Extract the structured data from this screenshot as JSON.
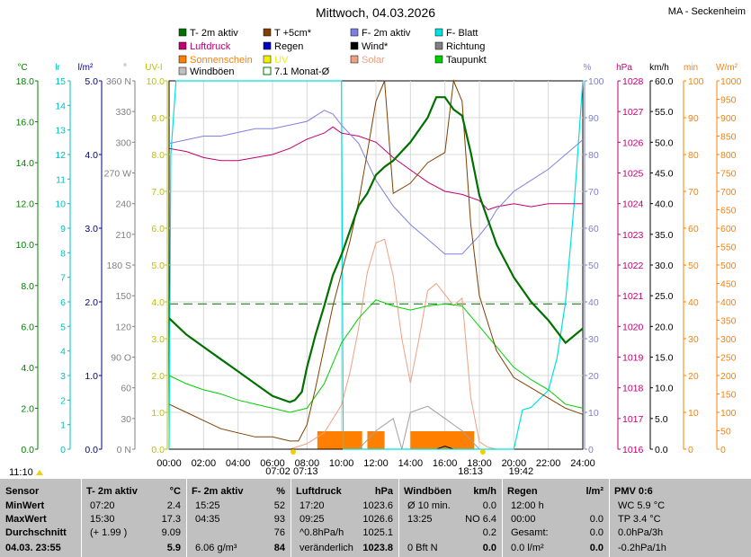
{
  "header": {
    "title": "Mittwoch, 04.03.2026",
    "station": "MA - Seckenheim"
  },
  "legend": [
    {
      "label": "T- 2m aktiv",
      "color": "#007000"
    },
    {
      "label": "T +5cm*",
      "color": "#804000"
    },
    {
      "label": "F- 2m aktiv",
      "color": "#8080e0"
    },
    {
      "label": "F- Blatt",
      "color": "#00e0e0"
    },
    {
      "label": "Luftdruck",
      "color": "#c00070"
    },
    {
      "label": "Regen",
      "color": "#0000c0"
    },
    {
      "label": "Wind*",
      "color": "#000000"
    },
    {
      "label": "Richtung",
      "color": "#808080"
    },
    {
      "label": "Sonnenschein",
      "color": "#ff8000"
    },
    {
      "label": "UV",
      "color": "#f0f000"
    },
    {
      "label": "Solar",
      "color": "#f0a080"
    },
    {
      "label": "Taupunkt",
      "color": "#00d000"
    },
    {
      "label": "Windböen",
      "color": "#c0c0c0"
    },
    {
      "label": "7.1 Monat-Ø",
      "color": "#007000"
    }
  ],
  "axes": {
    "temp": {
      "unit": "°C",
      "color": "#008000",
      "ticks": [
        "18.0",
        "16.0",
        "14.0",
        "12.0",
        "10.0",
        "8.0",
        "6.0",
        "4.0",
        "2.0",
        "0.0"
      ]
    },
    "leaf": {
      "unit": "lr",
      "color": "#00c0c0",
      "ticks": [
        "15",
        "14",
        "13",
        "12",
        "11",
        "10",
        "9",
        "8",
        "7",
        "6",
        "5",
        "4",
        "3",
        "2",
        "1",
        "0"
      ]
    },
    "rain": {
      "unit": "l/m²",
      "color": "#000080",
      "ticks": [
        "5.0",
        "4.0",
        "3.0",
        "2.0",
        "1.0",
        "0.0"
      ]
    },
    "dir": {
      "unit": "°",
      "color": "#808080",
      "ticks": [
        "360 N",
        "330",
        "300",
        "270 W",
        "240",
        "210",
        "180 S",
        "150",
        "120",
        "90 O",
        "60",
        "30",
        "0 N"
      ]
    },
    "uv": {
      "unit": "UV-I",
      "color": "#c0c000",
      "ticks": [
        "10.0",
        "9.0",
        "8.0",
        "7.0",
        "6.0",
        "5.0",
        "4.0",
        "3.0",
        "2.0",
        "1.0",
        "0.0"
      ]
    },
    "hum": {
      "unit": "%",
      "color": "#8080c0",
      "ticks": [
        "100",
        "90",
        "80",
        "70",
        "60",
        "50",
        "40",
        "30",
        "20",
        "10",
        "0"
      ]
    },
    "press": {
      "unit": "hPa",
      "color": "#c00070",
      "ticks": [
        "1028",
        "1027",
        "1026",
        "1025",
        "1024",
        "1023",
        "1022",
        "1021",
        "1020",
        "1019",
        "1018",
        "1017",
        "1016"
      ]
    },
    "wind": {
      "unit": "km/h",
      "color": "#000000",
      "ticks": [
        "60.0",
        "55.0",
        "50.0",
        "45.0",
        "40.0",
        "35.0",
        "30.0",
        "25.0",
        "20.0",
        "15.0",
        "10.0",
        "5.0",
        "0.0"
      ]
    },
    "sunmin": {
      "unit": "min",
      "color": "#ff8000",
      "ticks": [
        "100",
        "90",
        "80",
        "70",
        "60",
        "50",
        "40",
        "30",
        "20",
        "10",
        "0"
      ]
    },
    "solar": {
      "unit": "W/m²",
      "color": "#ff8000",
      "ticks": [
        "1000",
        "950",
        "900",
        "850",
        "800",
        "750",
        "700",
        "650",
        "600",
        "550",
        "500",
        "450",
        "400",
        "350",
        "300",
        "250",
        "200",
        "150",
        "100",
        "50",
        "0"
      ]
    },
    "time": [
      "00:00",
      "02:00",
      "04:00",
      "06:00",
      "08:00",
      "10:00",
      "12:00",
      "14:00",
      "16:00",
      "18:00",
      "20:00",
      "22:00",
      "24:00"
    ]
  },
  "markers": {
    "sunrise": "07:02",
    "sunset": "18:13",
    "civil_start": "07:13",
    "civil_end": "19:42",
    "clock": "11:10"
  },
  "chart_data": {
    "type": "line",
    "x_label_unit": "hours",
    "monthly_avg_temp": 7.1,
    "series": [
      {
        "name": "T- 2m aktiv",
        "x": [
          0,
          1,
          2,
          3,
          4,
          5,
          6,
          7,
          7.3,
          7.7,
          8,
          8.5,
          9,
          9.5,
          10,
          10.5,
          11,
          11.5,
          12,
          12.5,
          13,
          14,
          15,
          15.5,
          16,
          16.5,
          17,
          17.5,
          18,
          19,
          20,
          21,
          22,
          23,
          24
        ],
        "y": [
          6.4,
          5.6,
          5.0,
          4.4,
          3.8,
          3.2,
          2.6,
          2.3,
          2.4,
          2.8,
          4.0,
          5.6,
          7.0,
          8.5,
          9.5,
          10.7,
          11.9,
          12.5,
          13.4,
          13.8,
          14.1,
          15.0,
          16.2,
          17.2,
          17.2,
          16.6,
          16.3,
          14.5,
          12.4,
          10.0,
          8.4,
          7.2,
          6.3,
          5.2,
          5.9
        ]
      },
      {
        "name": "F- 2m aktiv",
        "x": [
          0,
          1,
          2,
          3,
          4,
          5,
          6,
          7,
          8,
          9,
          9.5,
          10,
          11,
          12,
          13,
          14,
          15,
          16,
          17,
          18,
          18.5,
          19,
          20,
          21,
          22,
          23,
          24
        ],
        "y": [
          83,
          84,
          85,
          85,
          86,
          87,
          87,
          88,
          89,
          92,
          91,
          88,
          83,
          73,
          66,
          61,
          57,
          53,
          53,
          58,
          61,
          65,
          70,
          73,
          76,
          80,
          84
        ]
      },
      {
        "name": "Luftdruck",
        "x": [
          0,
          1,
          2,
          3,
          4,
          5,
          6,
          7,
          8,
          9,
          9.5,
          10,
          11,
          12,
          13,
          14,
          15,
          16,
          17,
          18,
          18.5,
          19,
          20,
          21,
          22,
          23,
          24
        ],
        "y": [
          1025.8,
          1025.7,
          1025.5,
          1025.4,
          1025.4,
          1025.5,
          1025.6,
          1025.8,
          1026.1,
          1026.3,
          1026.5,
          1026.3,
          1026.2,
          1026.0,
          1025.5,
          1025.1,
          1024.7,
          1024.4,
          1024.3,
          1024.1,
          1023.8,
          1023.9,
          1024.0,
          1023.9,
          1024.0,
          1024.0,
          1024.0
        ]
      },
      {
        "name": "Taupunkt",
        "x": [
          0,
          1,
          2,
          3,
          4,
          5,
          6,
          7,
          8,
          9,
          10,
          11,
          12,
          13,
          14,
          15,
          16,
          17,
          18,
          19,
          20,
          21,
          22,
          23,
          24
        ],
        "y": [
          3.6,
          3.2,
          2.9,
          2.7,
          2.4,
          2.2,
          2.0,
          1.8,
          2.0,
          3.2,
          5.2,
          6.4,
          7.3,
          7.0,
          6.8,
          7.0,
          7.1,
          7.0,
          6.0,
          5.0,
          4.0,
          3.4,
          2.9,
          2.2,
          2.0
        ]
      },
      {
        "name": "T +5cm*",
        "x": [
          0,
          1,
          2,
          3,
          4,
          5,
          6,
          7,
          7.5,
          8,
          8.5,
          9,
          9.5,
          10,
          10.5,
          11,
          11.5,
          12,
          12.5,
          13,
          14,
          15,
          16,
          16.5,
          17,
          17.5,
          18,
          19,
          20,
          21,
          22,
          23,
          24
        ],
        "y": [
          2.2,
          1.8,
          1.4,
          1.0,
          0.8,
          0.6,
          0.6,
          0.4,
          0.4,
          1.2,
          3.0,
          5.0,
          7.0,
          8.6,
          10.2,
          12.1,
          14.5,
          17.0,
          18.0,
          12.5,
          13.0,
          14.0,
          14.5,
          18.0,
          17.0,
          11.0,
          7.5,
          4.8,
          3.5,
          3.0,
          2.5,
          2.0,
          1.7
        ]
      },
      {
        "name": "F- Blatt",
        "x": [
          0,
          0.1,
          0.4,
          9.9,
          10,
          10.1,
          20,
          20.5,
          21,
          22,
          22.5,
          23,
          23.5,
          24
        ],
        "y": [
          0,
          12,
          15,
          15,
          15,
          0,
          0,
          1.6,
          1.7,
          2.4,
          3.7,
          6.0,
          10.0,
          15.0
        ]
      },
      {
        "name": "Solar",
        "x": [
          0,
          7,
          8,
          9,
          10,
          10.5,
          11,
          11.5,
          12,
          12.5,
          13,
          13.5,
          14,
          14.5,
          15,
          15.5,
          16,
          16.5,
          17,
          17.5,
          18,
          18.5,
          19,
          24
        ],
        "y": [
          0,
          0,
          15,
          45,
          120,
          210,
          330,
          480,
          560,
          570,
          470,
          300,
          180,
          300,
          430,
          450,
          420,
          390,
          410,
          140,
          20,
          5,
          0,
          0
        ]
      },
      {
        "name": "Windböen",
        "x": [
          0,
          10,
          11,
          12,
          13,
          13.5,
          14,
          15,
          16,
          17,
          18,
          24
        ],
        "y": [
          0,
          0,
          0,
          3,
          5,
          0,
          6,
          7,
          5,
          3,
          0,
          0
        ]
      },
      {
        "name": "Wind*",
        "x": [
          0,
          15.5,
          16,
          16.5,
          17,
          24
        ],
        "y": [
          0,
          0,
          0.5,
          0,
          0,
          0
        ]
      }
    ],
    "sunshine_blocks": [
      [
        8.6,
        11.2
      ],
      [
        11.5,
        12.5
      ],
      [
        14.0,
        17.7
      ]
    ],
    "rain_total": 0.0
  },
  "table": {
    "cols": [
      {
        "title": "Sensor",
        "unit": "",
        "rows": [
          [
            "MinWert",
            ""
          ],
          [
            "MaxWert",
            ""
          ],
          [
            "Durchschnitt",
            ""
          ]
        ],
        "footer": [
          "04.03. 23:55",
          ""
        ]
      },
      {
        "title": "T- 2m aktiv",
        "unit": "°C",
        "rows": [
          [
            "07:20",
            "2.4"
          ],
          [
            "15:30",
            "17.3"
          ],
          [
            "(+ 1.99 )",
            "9.09"
          ]
        ],
        "footer": [
          "",
          "5.9"
        ]
      },
      {
        "title": "F- 2m aktiv",
        "unit": "%",
        "rows": [
          [
            "15:25",
            "52"
          ],
          [
            "04:35",
            "93"
          ],
          [
            "",
            "76"
          ]
        ],
        "footer": [
          "6.06 g/m³",
          "84"
        ]
      },
      {
        "title": "Luftdruck",
        "unit": "hPa",
        "rows": [
          [
            "17:20",
            "1023.6"
          ],
          [
            "09:25",
            "1026.6"
          ],
          [
            "^0.8hPa/h",
            "1025.1"
          ]
        ],
        "footer": [
          "veränderlich",
          "1023.8"
        ]
      },
      {
        "title": "Windböen",
        "unit": "km/h",
        "rows": [
          [
            "Ø 10 min.",
            "0.0"
          ],
          [
            "13:25",
            "NO 6.4"
          ],
          [
            "",
            "0.2"
          ]
        ],
        "footer": [
          "0 Bft N",
          "0.0"
        ]
      },
      {
        "title": "Regen",
        "unit": "l/m²",
        "rows": [
          [
            "12:00 h",
            ""
          ],
          [
            "00:00",
            "0.0"
          ],
          [
            "Gesamt:",
            "0.0"
          ]
        ],
        "footer": [
          "0.0 l/m²",
          "0.0"
        ]
      },
      {
        "title": "PMV 0:6",
        "unit": "",
        "rows": [
          [
            "WC 5.9 °C",
            ""
          ],
          [
            "TP 3.4 °C",
            ""
          ],
          [
            "0.0hPa/3h",
            ""
          ]
        ],
        "footer": [
          "-0.2hPa/1h",
          ""
        ]
      }
    ]
  }
}
